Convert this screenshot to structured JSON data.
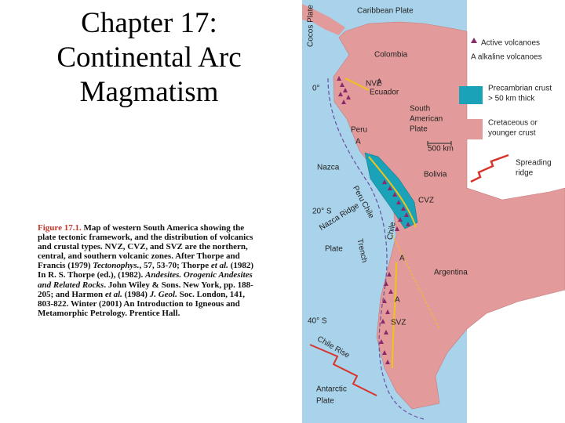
{
  "title": [
    "Chapter 17:",
    "Continental Arc",
    "Magmatism"
  ],
  "caption": [
    {
      "text": "Figure 17.1.",
      "style": "label"
    },
    {
      "text": " Map of western South America showing the plate tectonic framework, and the distribution of volcanics and crustal types. NVZ, CVZ, and SVZ are the northern, central, and southern volcanic zones. After Thorpe and Francis (1979) ",
      "style": "plain"
    },
    {
      "text": "Tectonophys.",
      "style": "italic"
    },
    {
      "text": ", 57, 53-70; Thorpe ",
      "style": "plain"
    },
    {
      "text": "et al.",
      "style": "italic"
    },
    {
      "text": " (1982) In R. S. Thorpe (ed.), (1982). ",
      "style": "plain"
    },
    {
      "text": "Andesites. Orogenic Andesites and Related Rocks",
      "style": "italic"
    },
    {
      "text": ". John Wiley & Sons. New York, pp. 188-205; and Harmon ",
      "style": "plain"
    },
    {
      "text": "et al.",
      "style": "italic"
    },
    {
      "text": " (1984) ",
      "style": "plain"
    },
    {
      "text": "J. Geol.",
      "style": "italic"
    },
    {
      "text": " Soc. London, 141, 803-822. Winter (2001) An Introduction to Igneous and Metamorphic Petrology. Prentice Hall.",
      "style": "plain"
    }
  ],
  "map": {
    "labels": [
      "Caribbean Plate",
      "Cocos Plate",
      "Colombia",
      "0°",
      "NVZ",
      "Ecuador",
      "South",
      "American",
      "Plate",
      "Peru",
      "500 km",
      "Nazca",
      "Bolivia",
      "CVZ",
      "20° S",
      "Peru",
      "Chile",
      "Trench",
      "Nazca Ridge",
      "Plate",
      "Chile",
      "Argentina",
      "40° S",
      "SVZ",
      "Chile Rise",
      "Antarctic",
      "Plate",
      "A",
      "A",
      "A",
      "A"
    ],
    "legend": [
      {
        "lines": [
          "Active volcanoes"
        ]
      },
      {
        "lines": [
          "A alkaline volcanoes"
        ]
      },
      {
        "lines": [
          "Precambrian crust",
          "> 50 km thick"
        ]
      },
      {
        "lines": [
          "Cretaceous or",
          "younger crust"
        ]
      },
      {
        "lines": [
          "Spreading",
          "ridge"
        ]
      }
    ]
  }
}
